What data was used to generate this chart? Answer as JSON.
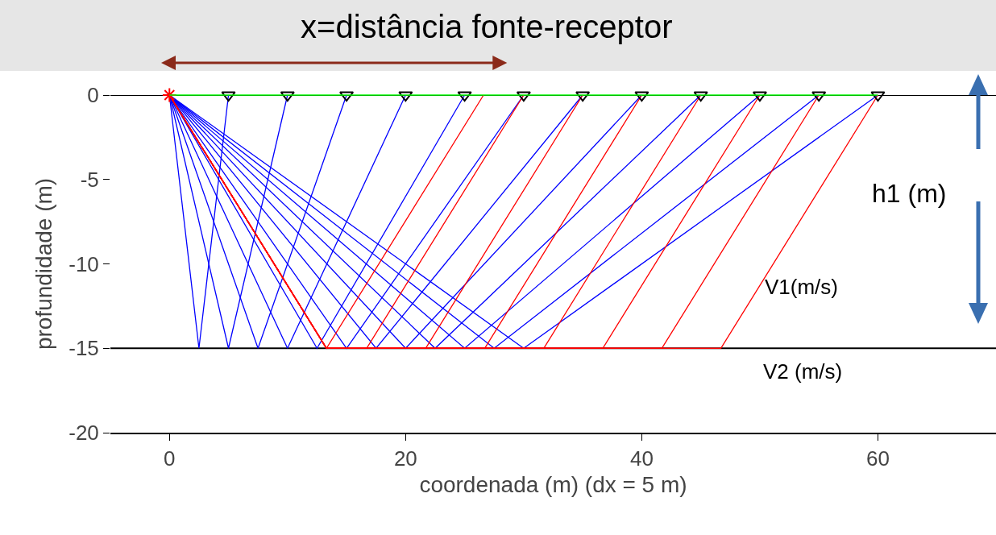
{
  "chart_data": {
    "type": "line",
    "title": "x=distância fonte-receptor",
    "xlabel": "coordenada (m) (dx = 5 m)",
    "ylabel": "profundidade (m)",
    "xlim": [
      -5,
      70
    ],
    "ylim": [
      -20,
      0
    ],
    "xticks": [
      0,
      20,
      40,
      60
    ],
    "yticks": [
      0,
      -5,
      -10,
      -15,
      -20
    ],
    "grid": false,
    "ref_lines": [
      {
        "axis": "y",
        "value": 0,
        "color": "#000000"
      },
      {
        "axis": "y",
        "value": -15,
        "color": "#000000"
      }
    ],
    "annotations": [
      "h1 (m)",
      "V1(m/s)",
      "V2 (m/s)"
    ],
    "series": [
      {
        "color": "#0000ff",
        "x": [
          0,
          2.5,
          5
        ],
        "values": [
          0,
          -15,
          0
        ]
      },
      {
        "color": "#0000ff",
        "x": [
          0,
          5,
          10
        ],
        "values": [
          0,
          -15,
          0
        ]
      },
      {
        "color": "#0000ff",
        "x": [
          0,
          7.5,
          15
        ],
        "values": [
          0,
          -15,
          0
        ]
      },
      {
        "color": "#0000ff",
        "x": [
          0,
          10,
          20
        ],
        "values": [
          0,
          -15,
          0
        ]
      },
      {
        "color": "#0000ff",
        "x": [
          0,
          12.5,
          25
        ],
        "values": [
          0,
          -15,
          0
        ]
      },
      {
        "color": "#0000ff",
        "x": [
          0,
          15,
          30
        ],
        "values": [
          0,
          -15,
          0
        ]
      },
      {
        "color": "#0000ff",
        "x": [
          0,
          17.5,
          35
        ],
        "values": [
          0,
          -15,
          0
        ]
      },
      {
        "color": "#0000ff",
        "x": [
          0,
          20,
          40
        ],
        "values": [
          0,
          -15,
          0
        ]
      },
      {
        "color": "#0000ff",
        "x": [
          0,
          22.5,
          45
        ],
        "values": [
          0,
          -15,
          0
        ]
      },
      {
        "color": "#0000ff",
        "x": [
          0,
          25,
          50
        ],
        "values": [
          0,
          -15,
          0
        ]
      },
      {
        "color": "#0000ff",
        "x": [
          0,
          27.5,
          55
        ],
        "values": [
          0,
          -15,
          0
        ]
      },
      {
        "color": "#0000ff",
        "x": [
          0,
          30,
          60
        ],
        "values": [
          0,
          -15,
          0
        ]
      },
      {
        "color": "#ff0000",
        "x": [
          0,
          13.3,
          26.6
        ],
        "values": [
          0,
          -15,
          0
        ]
      },
      {
        "color": "#ff0000",
        "x": [
          0,
          13.3,
          16.7,
          30
        ],
        "values": [
          0,
          -15,
          -15,
          0
        ]
      },
      {
        "color": "#ff0000",
        "x": [
          0,
          13.3,
          21.7,
          35
        ],
        "values": [
          0,
          -15,
          -15,
          0
        ]
      },
      {
        "color": "#ff0000",
        "x": [
          0,
          13.3,
          26.7,
          40
        ],
        "values": [
          0,
          -15,
          -15,
          0
        ]
      },
      {
        "color": "#ff0000",
        "x": [
          0,
          13.3,
          31.7,
          45
        ],
        "values": [
          0,
          -15,
          -15,
          0
        ]
      },
      {
        "color": "#ff0000",
        "x": [
          0,
          13.3,
          36.7,
          50
        ],
        "values": [
          0,
          -15,
          -15,
          0
        ]
      },
      {
        "color": "#ff0000",
        "x": [
          0,
          13.3,
          41.7,
          55
        ],
        "values": [
          0,
          -15,
          -15,
          0
        ]
      },
      {
        "color": "#ff0000",
        "x": [
          0,
          13.3,
          46.7,
          60
        ],
        "values": [
          0,
          -15,
          -15,
          0
        ]
      },
      {
        "type": "scatter",
        "color": "#000000",
        "marker": "triangle",
        "x": [
          5,
          10,
          15,
          20,
          25,
          30,
          35,
          40,
          45,
          50,
          55,
          60
        ],
        "values": [
          0,
          0,
          0,
          0,
          0,
          0,
          0,
          0,
          0,
          0,
          0,
          0
        ]
      },
      {
        "type": "scatter",
        "color": "#ff0000",
        "marker": "cross",
        "x": [
          0
        ],
        "values": [
          0
        ]
      },
      {
        "color": "#00ff00",
        "x": [
          0,
          60
        ],
        "values": [
          0,
          0
        ]
      }
    ]
  }
}
